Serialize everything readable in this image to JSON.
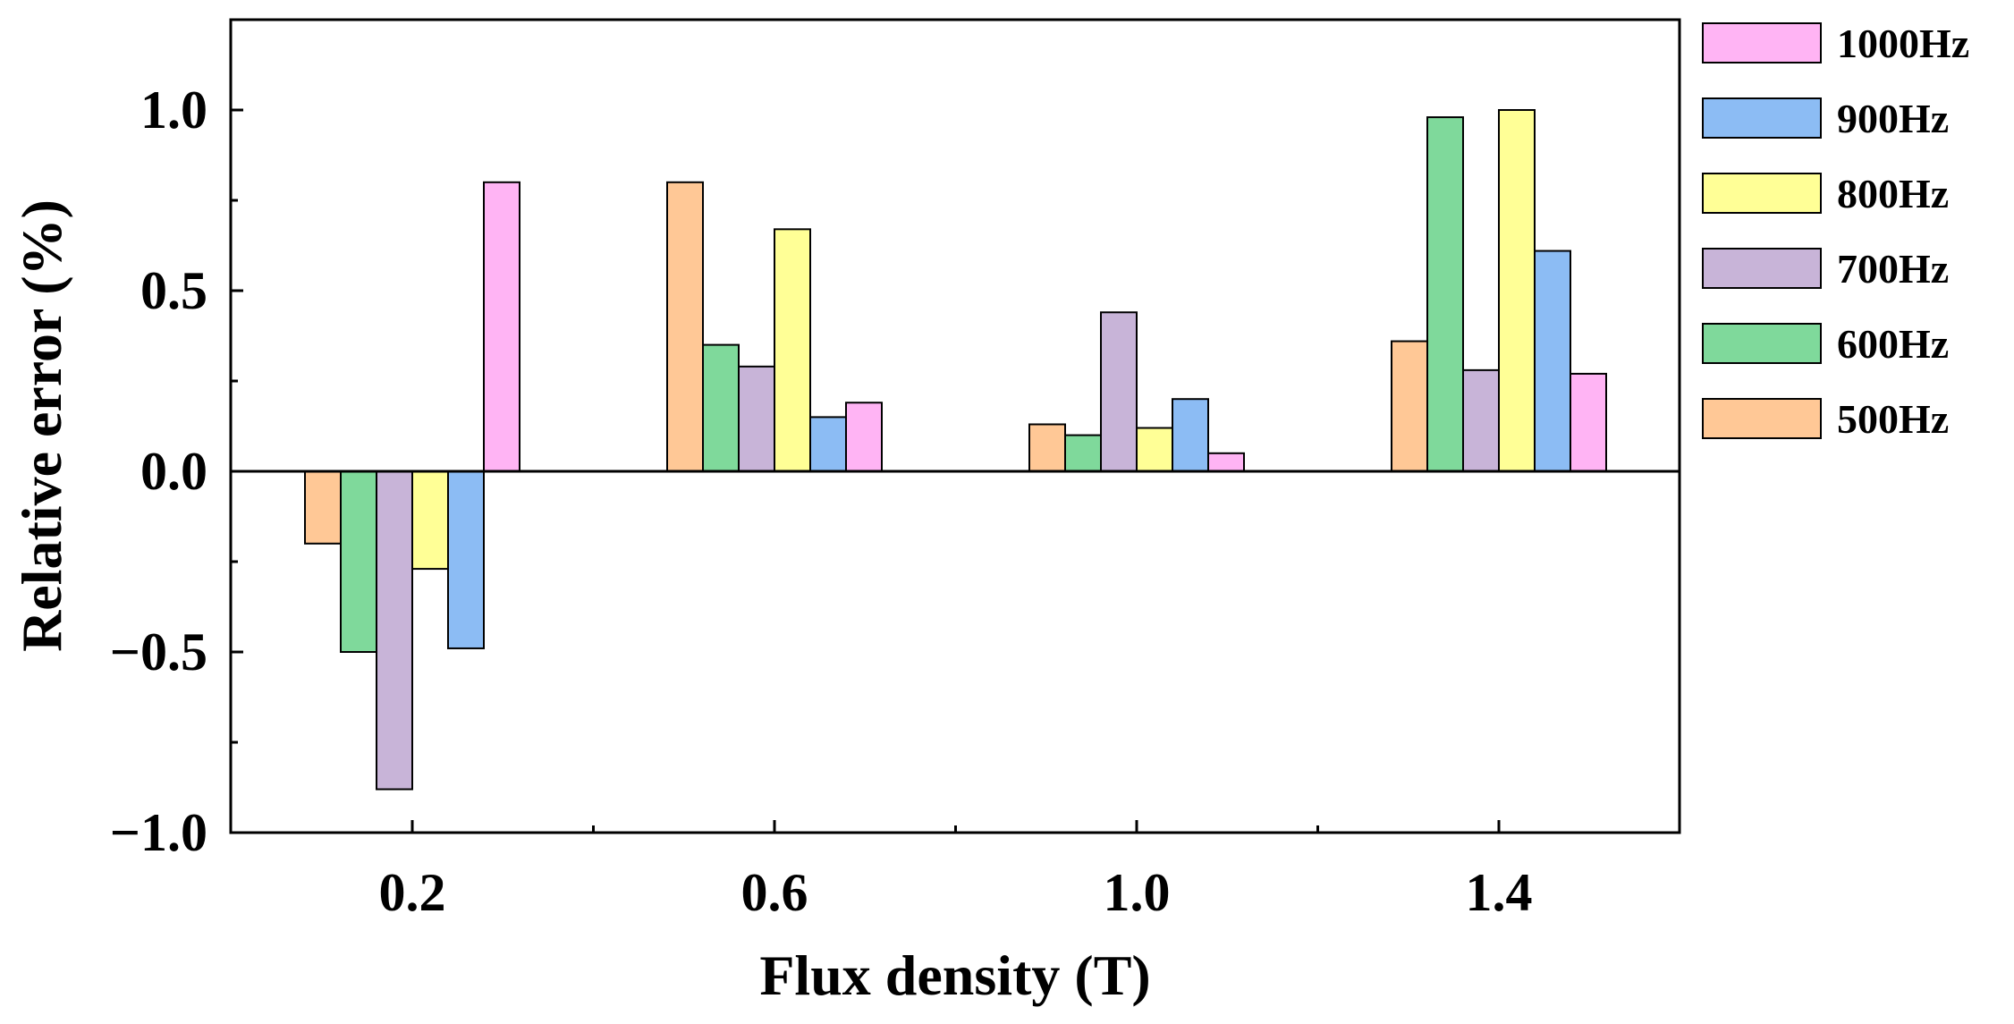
{
  "chart_data": {
    "type": "bar",
    "title": "",
    "xlabel": "Flux density (T)",
    "ylabel": "Relative error (%)",
    "categories": [
      "0.2",
      "0.6",
      "1.0",
      "1.4"
    ],
    "ylim": [
      -1.0,
      1.25
    ],
    "yticks": [
      -1.0,
      -0.5,
      0.0,
      0.5,
      1.0
    ],
    "ytick_labels": [
      "−1.0",
      "−0.5",
      "0.0",
      "0.5",
      "1.0"
    ],
    "legend_position": "right",
    "grid": false,
    "series": [
      {
        "name": "500Hz",
        "color": "#FFC896",
        "values": [
          -0.2,
          0.8,
          0.13,
          0.36
        ]
      },
      {
        "name": "600Hz",
        "color": "#7FD99B",
        "values": [
          -0.5,
          0.35,
          0.1,
          0.98
        ]
      },
      {
        "name": "700Hz",
        "color": "#C8B4D8",
        "values": [
          -0.88,
          0.29,
          0.44,
          0.28
        ]
      },
      {
        "name": "800Hz",
        "color": "#FFFF96",
        "values": [
          -0.27,
          0.67,
          0.12,
          1.0
        ]
      },
      {
        "name": "900Hz",
        "color": "#8CBCF4",
        "values": [
          -0.49,
          0.15,
          0.2,
          0.61
        ]
      },
      {
        "name": "1000Hz",
        "color": "#FFB4F4",
        "values": [
          0.8,
          0.19,
          0.05,
          0.27
        ]
      }
    ],
    "legend_order": [
      "1000Hz",
      "900Hz",
      "800Hz",
      "700Hz",
      "600Hz",
      "500Hz"
    ]
  }
}
